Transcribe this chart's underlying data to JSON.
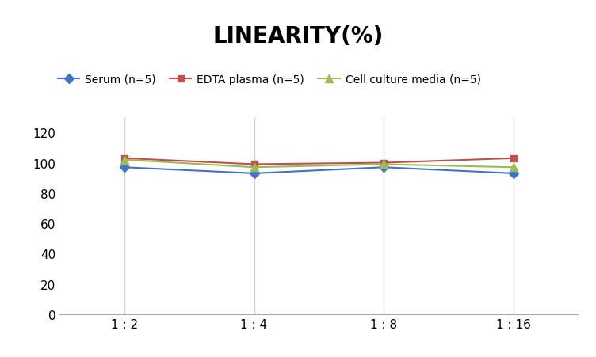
{
  "title": "LINEARITY(%)",
  "x_labels": [
    "1 : 2",
    "1 : 4",
    "1 : 8",
    "1 : 16"
  ],
  "x_positions": [
    0,
    1,
    2,
    3
  ],
  "series": [
    {
      "label": "Serum (n=5)",
      "values": [
        97,
        93,
        97,
        93
      ],
      "color": "#4472C4",
      "marker": "D",
      "markersize": 6,
      "linewidth": 1.5
    },
    {
      "label": "EDTA plasma (n=5)",
      "values": [
        103,
        99,
        100,
        103
      ],
      "color": "#C0504D",
      "marker": "s",
      "markersize": 6,
      "linewidth": 1.5
    },
    {
      "label": "Cell culture media (n=5)",
      "values": [
        102,
        97,
        99,
        97
      ],
      "color": "#9BBB59",
      "marker": "^",
      "markersize": 7,
      "linewidth": 1.5
    }
  ],
  "ylim": [
    0,
    130
  ],
  "yticks": [
    0,
    20,
    40,
    60,
    80,
    100,
    120
  ],
  "title_fontsize": 20,
  "title_fontweight": "bold",
  "legend_fontsize": 10,
  "tick_fontsize": 11,
  "background_color": "#ffffff",
  "grid_color": "#d3d3d3",
  "spine_color": "#aaaaaa"
}
